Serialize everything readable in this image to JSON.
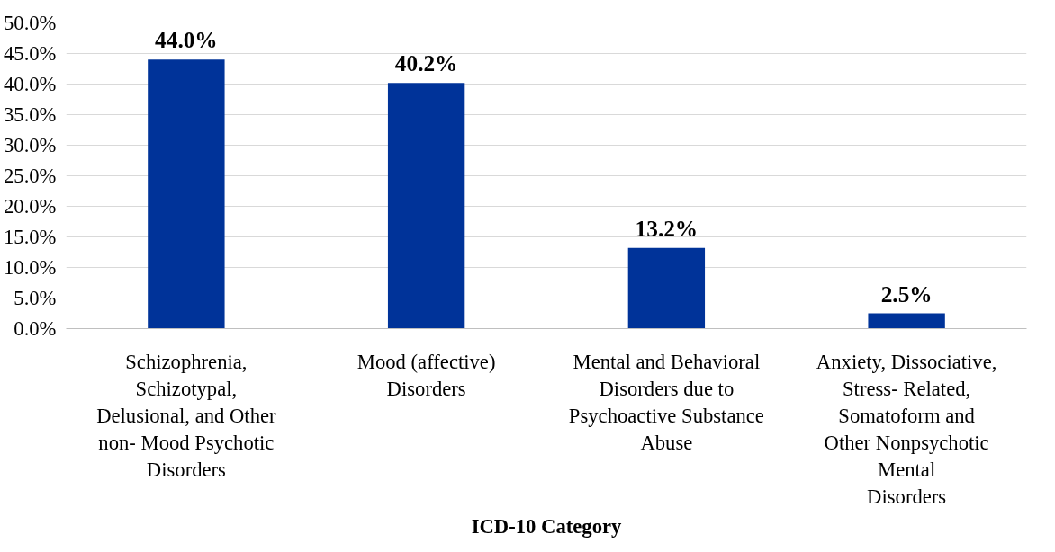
{
  "chart_data": {
    "type": "bar",
    "xlabel": "ICD-10 Category",
    "categories": [
      "Schizophrenia,\nSchizotypal,\nDelusional, and Other\nnon- Mood Psychotic\nDisorders",
      "Mood (affective)\nDisorders",
      "Mental and Behavioral\nDisorders due to\nPsychoactive Substance\nAbuse",
      "Anxiety, Dissociative,\nStress- Related,\nSomatoform and\nOther Nonpsychotic\nMental\nDisorders"
    ],
    "values": [
      44.0,
      40.2,
      13.2,
      2.5
    ],
    "value_labels": [
      "44.0%",
      "40.2%",
      "13.2%",
      "2.5%"
    ],
    "color": "#003399",
    "ylim": [
      0,
      50
    ],
    "yticks": [
      {
        "value": 0,
        "label": "0.0%"
      },
      {
        "value": 5,
        "label": "5.0%"
      },
      {
        "value": 10,
        "label": "10.0%"
      },
      {
        "value": 15,
        "label": "15.0%"
      },
      {
        "value": 20,
        "label": "20.0%"
      },
      {
        "value": 25,
        "label": "25.0%"
      },
      {
        "value": 30,
        "label": "30.0%"
      },
      {
        "value": 35,
        "label": "35.0%"
      },
      {
        "value": 40,
        "label": "40.0%"
      },
      {
        "value": 45,
        "label": "45.0%"
      },
      {
        "value": 50,
        "label": "50.0%"
      }
    ],
    "grid": "y"
  }
}
